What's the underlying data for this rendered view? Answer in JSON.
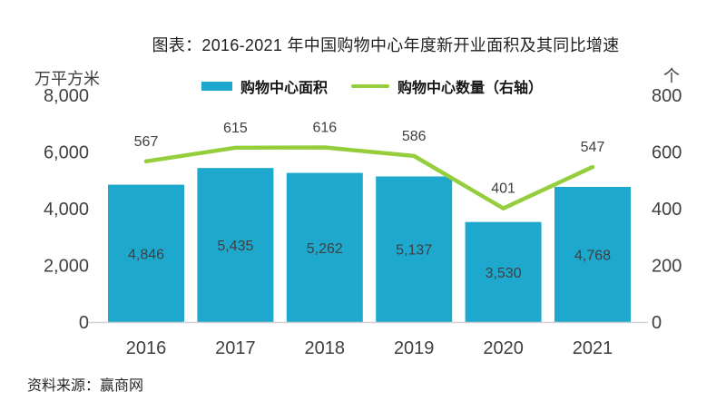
{
  "page": {
    "title": "图表：2016-2021 年中国购物中心年度新开业面积及其同比增速",
    "source": "资料来源：赢商网"
  },
  "legend": [
    {
      "label": "购物中心面积",
      "type": "bar",
      "color": "#1FA8CE"
    },
    {
      "label": "购物中心数量（右轴）",
      "type": "line",
      "color": "#95CE3C"
    }
  ],
  "colors": {
    "bar": "#1FA8CE",
    "line": "#95CE3C",
    "label_text": "#3f3f3f",
    "axis_line": "#d2d2d2",
    "title_text": "#222222"
  },
  "chart_data": {
    "type": "combo",
    "categories": [
      "2016",
      "2017",
      "2018",
      "2019",
      "2020",
      "2021"
    ],
    "series": [
      {
        "name": "购物中心面积",
        "chart": "bar",
        "axis": "left",
        "color": "#1FA8CE",
        "values": [
          4846,
          5435,
          5262,
          5137,
          3530,
          4768
        ],
        "labels": [
          "4,846",
          "5,435",
          "5,262",
          "5,137",
          "3,530",
          "4,768"
        ]
      },
      {
        "name": "购物中心数量（右轴）",
        "chart": "line",
        "axis": "right",
        "color": "#95CE3C",
        "values": [
          567,
          615,
          616,
          586,
          401,
          547
        ],
        "labels": [
          "567",
          "615",
          "616",
          "586",
          "401",
          "547"
        ]
      }
    ],
    "axes": {
      "left": {
        "unit": "万平方米",
        "min": 0,
        "max": 8000,
        "ticks": [
          "8,000",
          "6,000",
          "4,000",
          "2,000",
          "0"
        ]
      },
      "right": {
        "unit": "个",
        "min": 0,
        "max": 800,
        "ticks": [
          "800",
          "600",
          "400",
          "200",
          "0"
        ]
      }
    },
    "grid": false,
    "legend_position": "top",
    "title": "图表：2016-2021 年中国购物中心年度新开业面积及其同比增速"
  }
}
